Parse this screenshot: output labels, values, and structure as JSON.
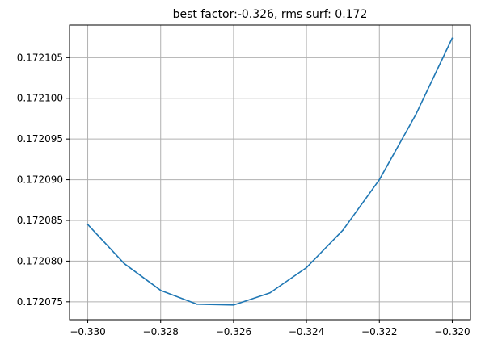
{
  "chart_data": {
    "type": "line",
    "title": "best factor:-0.326, rms surf: 0.172",
    "xlabel": "",
    "ylabel": "",
    "xlim": [
      -0.3305,
      -0.3195
    ],
    "ylim": [
      0.1720728,
      0.172109
    ],
    "grid": true,
    "xticks": [
      {
        "value": -0.33,
        "label": "−0.330"
      },
      {
        "value": -0.328,
        "label": "−0.328"
      },
      {
        "value": -0.326,
        "label": "−0.326"
      },
      {
        "value": -0.324,
        "label": "−0.324"
      },
      {
        "value": -0.322,
        "label": "−0.322"
      },
      {
        "value": -0.32,
        "label": "−0.320"
      }
    ],
    "yticks": [
      {
        "value": 0.172075,
        "label": "0.172075"
      },
      {
        "value": 0.17208,
        "label": "0.172080"
      },
      {
        "value": 0.172085,
        "label": "0.172085"
      },
      {
        "value": 0.17209,
        "label": "0.172090"
      },
      {
        "value": 0.172095,
        "label": "0.172095"
      },
      {
        "value": 0.1721,
        "label": "0.172100"
      },
      {
        "value": 0.172105,
        "label": "0.172105"
      }
    ],
    "series": [
      {
        "color": "#1f77b4",
        "x": [
          -0.33,
          -0.329,
          -0.328,
          -0.327,
          -0.326,
          -0.325,
          -0.324,
          -0.323,
          -0.322,
          -0.321,
          -0.32
        ],
        "y": [
          0.1720845,
          0.1720797,
          0.1720764,
          0.1720747,
          0.1720746,
          0.1720761,
          0.1720792,
          0.1720838,
          0.17209,
          0.172098,
          0.1721074
        ]
      }
    ]
  }
}
